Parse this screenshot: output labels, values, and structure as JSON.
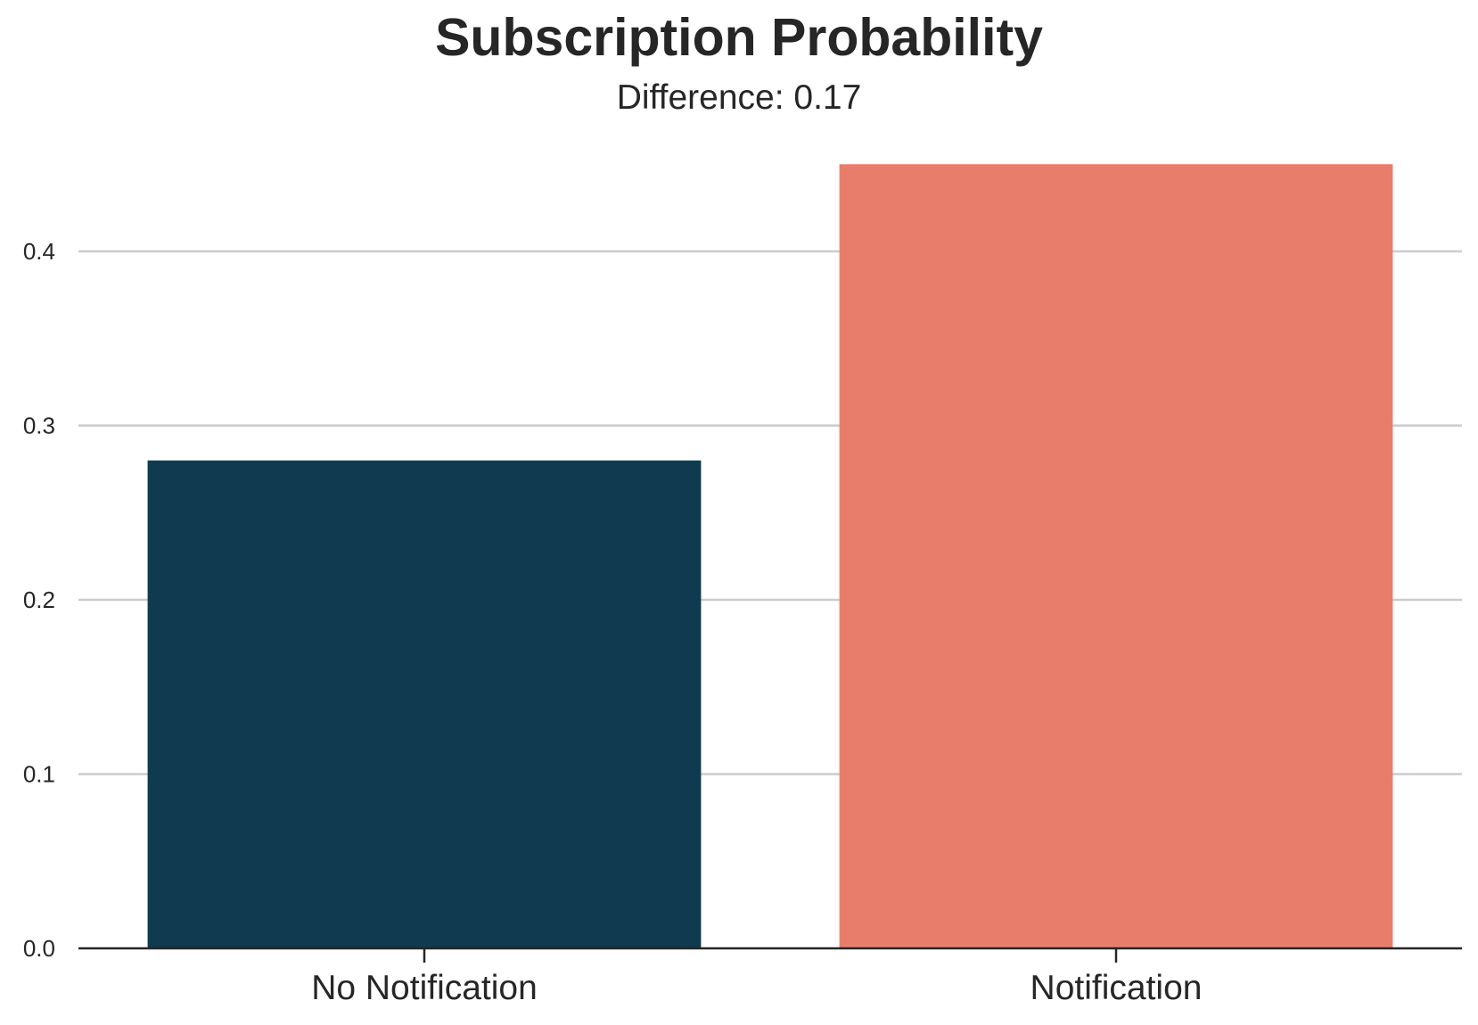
{
  "chart_data": {
    "type": "bar",
    "title": "Subscription Probability",
    "subtitle": "Difference: 0.17",
    "categories": [
      "No Notification",
      "Notification"
    ],
    "values": [
      0.28,
      0.45
    ],
    "colors": [
      "#0f3a50",
      "#e97d6b"
    ],
    "xlabel": "",
    "ylabel": "",
    "ylim": [
      0,
      0.45
    ],
    "yticks": [
      0.0,
      0.1,
      0.2,
      0.3,
      0.4
    ],
    "ytick_labels": [
      "0.0",
      "0.1",
      "0.2",
      "0.3",
      "0.4"
    ],
    "grid": "horizontal",
    "legend": "none"
  }
}
